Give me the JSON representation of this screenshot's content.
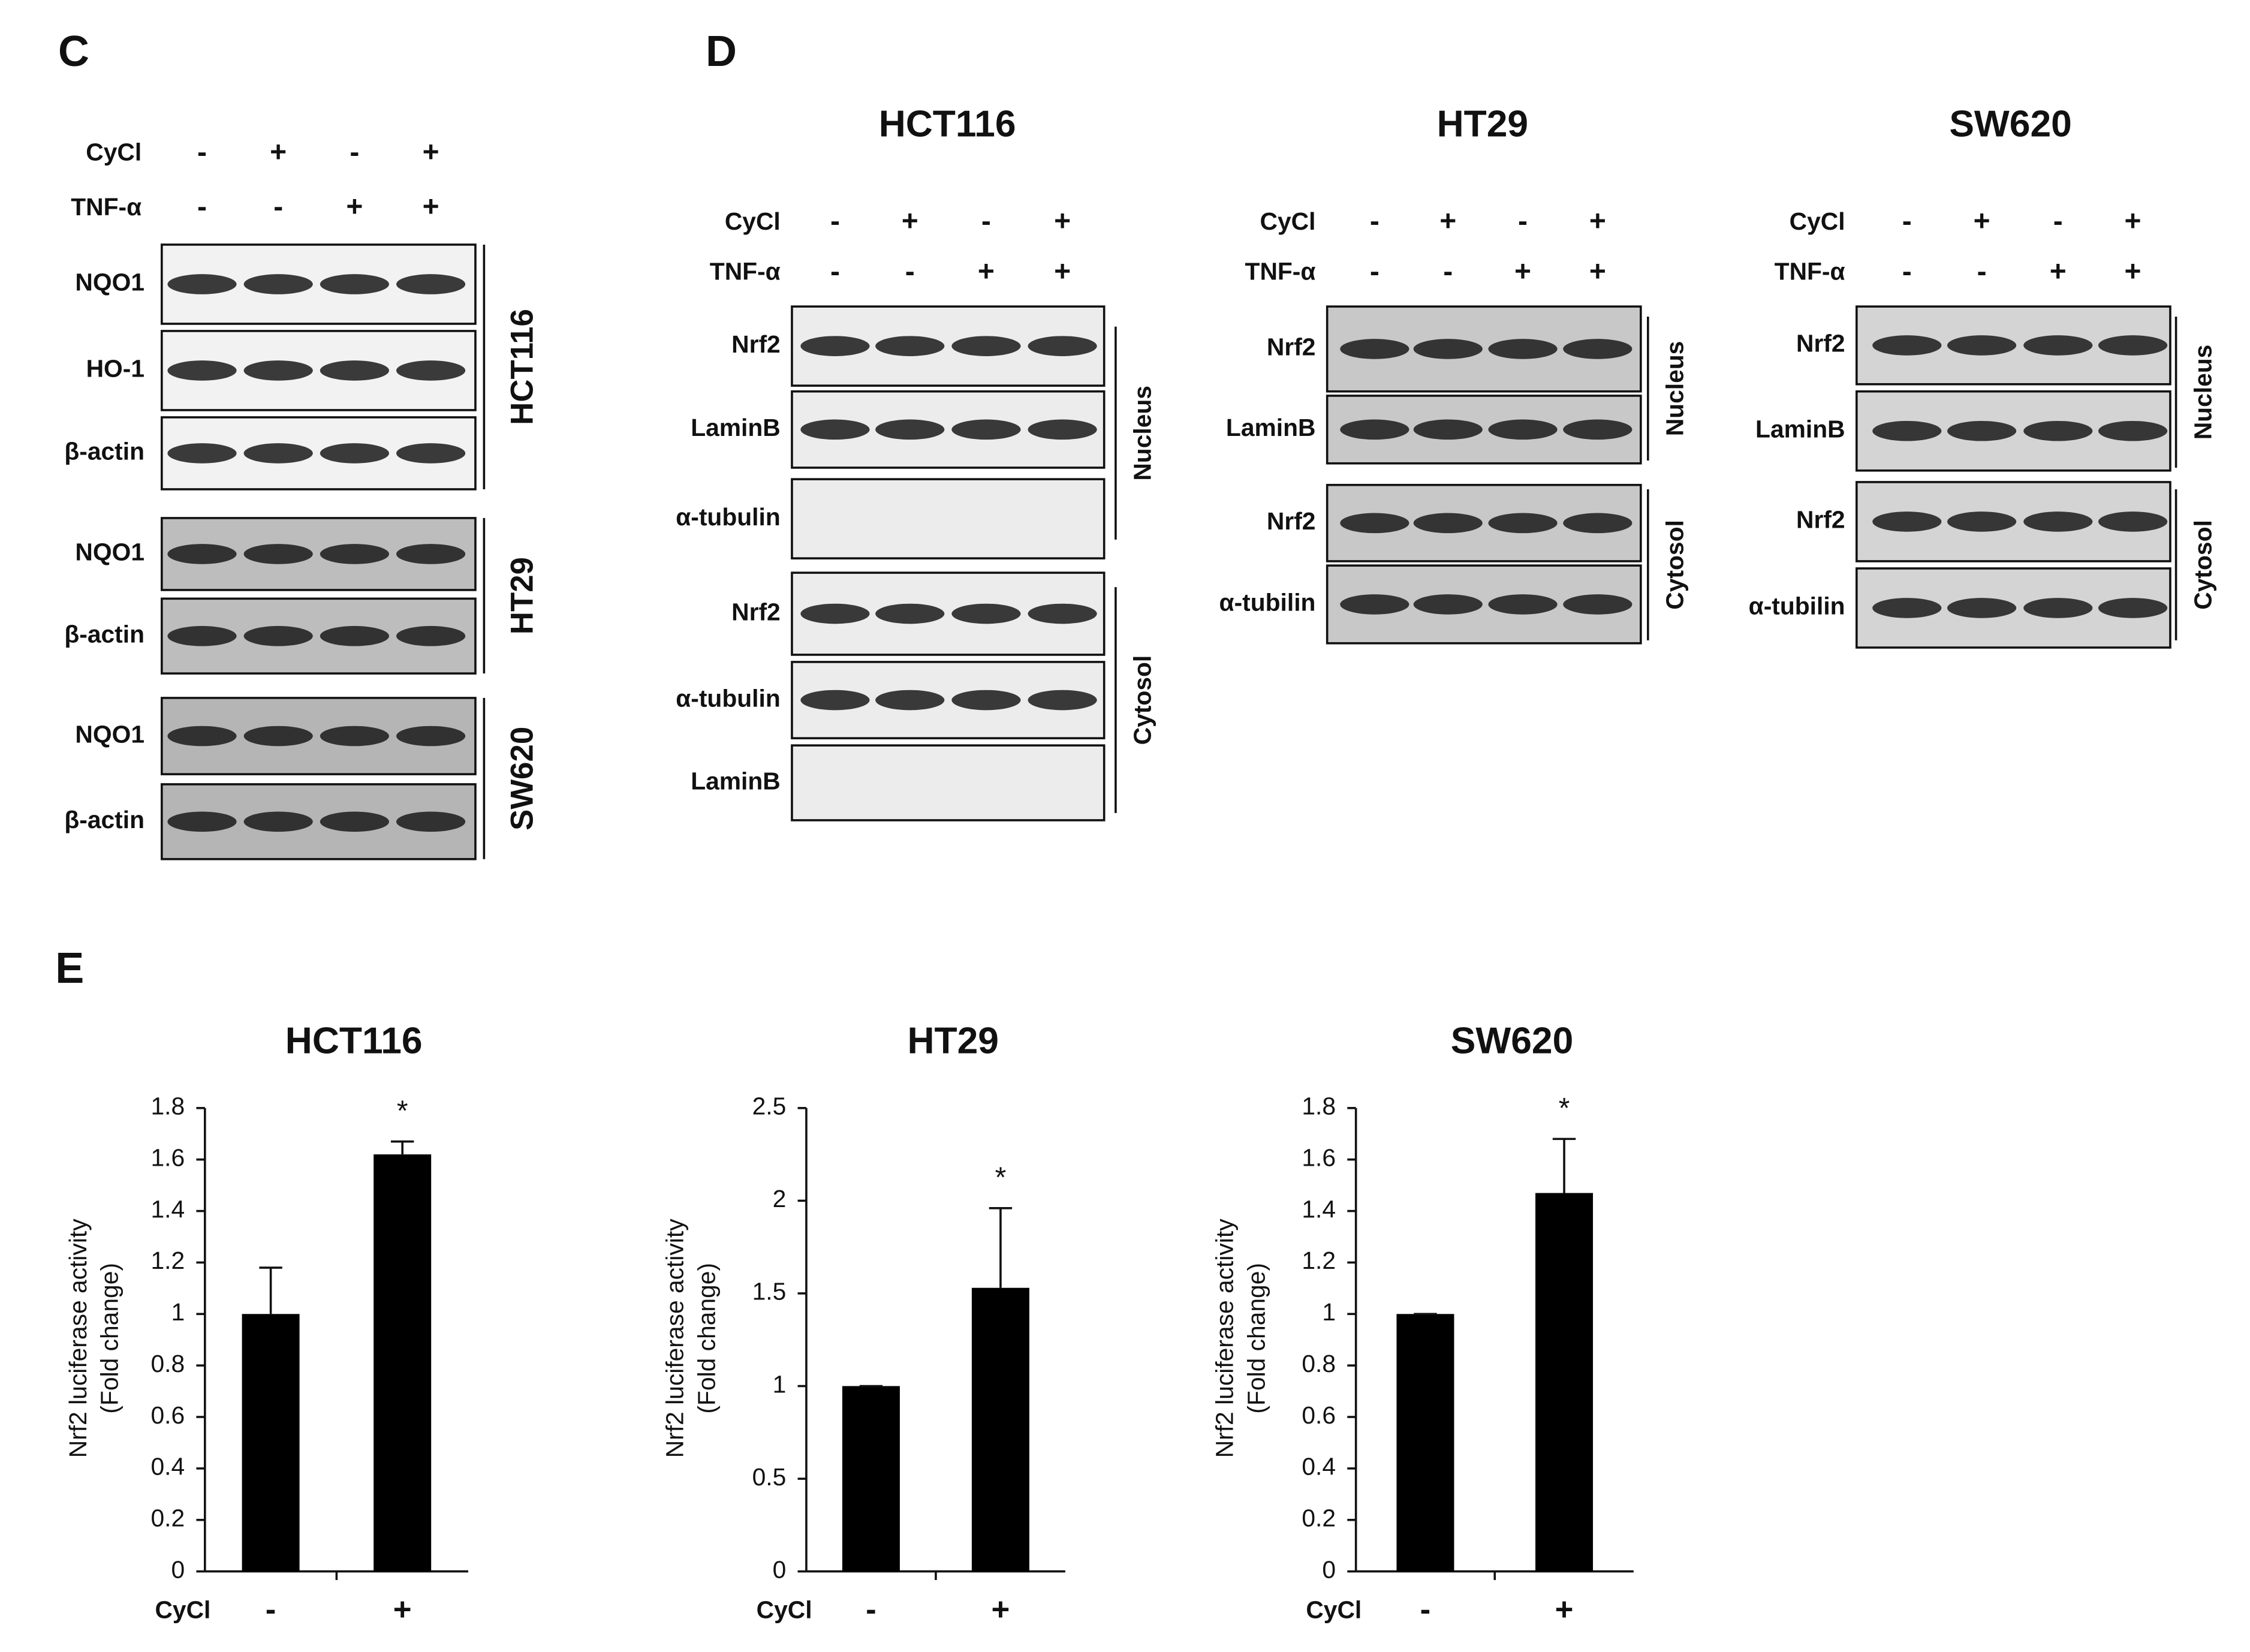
{
  "panel_c": {
    "label": "C",
    "treatments": [
      {
        "name": "CyCl",
        "signs": [
          "-",
          "+",
          "-",
          "+"
        ]
      },
      {
        "name": "TNF-α",
        "signs": [
          "-",
          "-",
          "+",
          "+"
        ]
      }
    ],
    "groups": [
      {
        "cell_line": "HCT116",
        "rows": [
          "NQO1",
          "HO-1",
          "β-actin"
        ]
      },
      {
        "cell_line": "HT29",
        "rows": [
          "NQO1",
          "β-actin"
        ]
      },
      {
        "cell_line": "SW620",
        "rows": [
          "NQO1",
          "β-actin"
        ]
      }
    ]
  },
  "panel_d": {
    "label": "D",
    "blots": [
      {
        "title": "HCT116",
        "treatments": [
          {
            "name": "CyCl",
            "signs": [
              "-",
              "+",
              "-",
              "+"
            ]
          },
          {
            "name": "TNF-α",
            "signs": [
              "-",
              "-",
              "+",
              "+"
            ]
          }
        ],
        "rows": [
          "Nrf2",
          "LaminB",
          "α-tubulin",
          "Nrf2",
          "α-tubulin",
          "LaminB"
        ],
        "fractions": [
          "Nucleus",
          "Cytosol"
        ]
      },
      {
        "title": "HT29",
        "treatments": [
          {
            "name": "CyCl",
            "signs": [
              "-",
              "+",
              "-",
              "+"
            ]
          },
          {
            "name": "TNF-α",
            "signs": [
              "-",
              "-",
              "+",
              "+"
            ]
          }
        ],
        "rows": [
          "Nrf2",
          "LaminB",
          "Nrf2",
          "α-tubilin"
        ],
        "fractions": [
          "Nucleus",
          "Cytosol"
        ]
      },
      {
        "title": "SW620",
        "treatments": [
          {
            "name": "CyCl",
            "signs": [
              "-",
              "+",
              "-",
              "+"
            ]
          },
          {
            "name": "TNF-α",
            "signs": [
              "-",
              "-",
              "+",
              "+"
            ]
          }
        ],
        "rows": [
          "Nrf2",
          "LaminB",
          "Nrf2",
          "α-tubilin"
        ],
        "fractions": [
          "Nucleus",
          "Cytosol"
        ]
      }
    ]
  },
  "panel_e": {
    "label": "E"
  },
  "chart_data": [
    {
      "type": "bar",
      "title": "HCT116",
      "y_label": [
        "Nrf2 luciferase activity",
        "(Fold change)"
      ],
      "x_label": "CyCl",
      "categories": [
        "-",
        "+"
      ],
      "values": [
        1,
        1.62
      ],
      "errors": [
        0.18,
        0.05
      ],
      "color": "#000000",
      "ylim": [
        0,
        1.8
      ],
      "yticks": [
        0,
        0.2,
        0.4,
        0.6,
        0.8,
        1,
        1.2,
        1.4,
        1.6,
        1.8
      ],
      "annotation": "*"
    },
    {
      "type": "bar",
      "title": "HT29",
      "y_label": [
        "Nrf2 luciferase activity",
        "(Fold change)"
      ],
      "x_label": "CyCl",
      "categories": [
        "-",
        "+"
      ],
      "values": [
        1,
        1.53
      ],
      "errors": [
        0,
        0.43
      ],
      "color": "#000000",
      "ylim": [
        0,
        2.5
      ],
      "yticks": [
        0,
        0.5,
        1,
        1.5,
        2,
        2.5
      ],
      "annotation": "*"
    },
    {
      "type": "bar",
      "title": "SW620",
      "y_label": [
        "Nrf2 luciferase activity",
        "(Fold change)"
      ],
      "x_label": "CyCl",
      "categories": [
        "-",
        "+"
      ],
      "values": [
        1,
        1.47
      ],
      "errors": [
        0,
        0.21
      ],
      "color": "#000000",
      "ylim": [
        0,
        1.8
      ],
      "yticks": [
        0,
        0.2,
        0.4,
        0.6,
        0.8,
        1,
        1.2,
        1.4,
        1.6,
        1.8
      ],
      "annotation": "*"
    }
  ]
}
